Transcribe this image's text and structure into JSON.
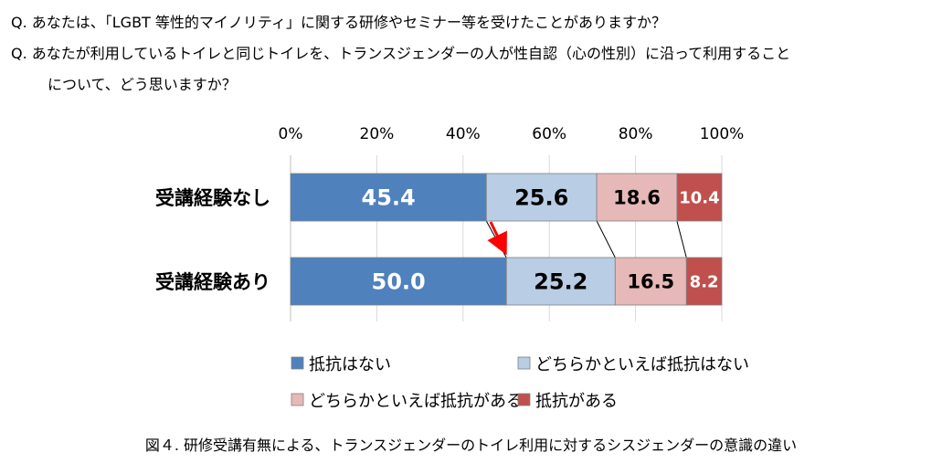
{
  "questions": [
    "Q. あなたは、「LGBT 等性的マイノリティ」に関する研修やセミナー等を受けたことがありますか？",
    "Q. あなたが利用しているトイレと同じトイレを、トランスジェンダーの人が性自認（心の性別）に沿って利用すること",
    "について、どう思いますか？"
  ],
  "caption": "図４. 研修受講有無による、トランスジェンダーのトイレ利用に対するシスジェンダーの意識の違い",
  "colors": [
    "#4f81bd",
    "#b9cde5",
    "#e6b9b8",
    "#c0504d"
  ],
  "label_colors": [
    "#ffffff",
    "#000000",
    "#000000",
    "#ffffff"
  ],
  "chart_data": {
    "type": "bar",
    "orientation": "horizontal",
    "stacked": true,
    "percent": true,
    "categories": [
      "受講経験なし",
      "受講経験あり"
    ],
    "series": [
      {
        "name": "抵抗はない",
        "values": [
          45.4,
          50.0
        ]
      },
      {
        "name": "どちらかといえば抵抗はない",
        "values": [
          25.6,
          25.2
        ]
      },
      {
        "name": "どちらかといえば抵抗がある",
        "values": [
          18.6,
          16.5
        ]
      },
      {
        "name": "抵抗がある",
        "values": [
          10.4,
          8.2
        ]
      }
    ],
    "value_labels": [
      [
        "45.4",
        "50.0"
      ],
      [
        "25.6",
        "25.2"
      ],
      [
        "18.6",
        "16.5"
      ],
      [
        "10.4",
        "8.2"
      ]
    ],
    "xlim": [
      0,
      100
    ],
    "ticks": [
      0,
      20,
      40,
      60,
      80,
      100
    ],
    "tick_labels": [
      "0%",
      "20%",
      "40%",
      "60%",
      "80%",
      "100%"
    ],
    "gridlines": true,
    "series_lines": true,
    "legend_position": "bottom"
  }
}
